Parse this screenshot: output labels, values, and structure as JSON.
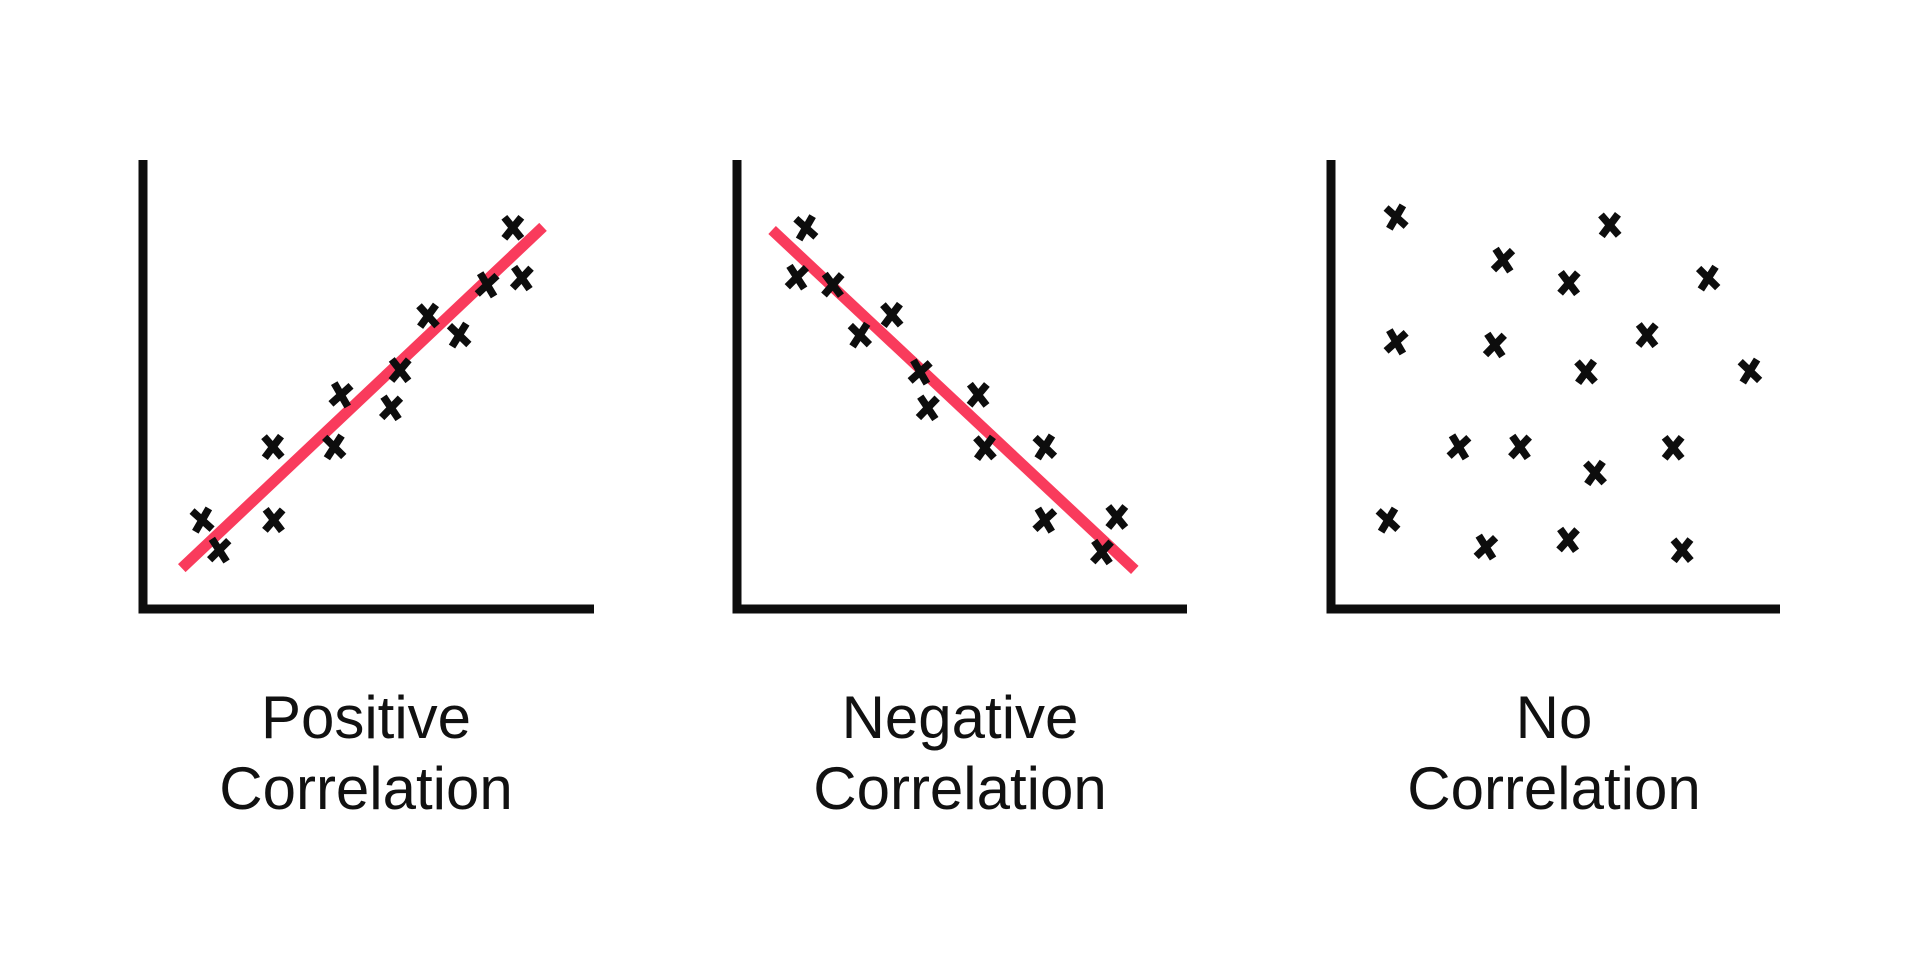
{
  "figure": {
    "background": "#ffffff",
    "text_color": "#111111"
  },
  "colors": {
    "axis": "#0d0d0d",
    "marker": "#0d0d0d",
    "trendline": "#f93b5c"
  },
  "chart_data": [
    {
      "type": "scatter",
      "title": "Positive Correlation",
      "title_lines": [
        "Positive",
        "Correlation"
      ],
      "xlabel": "",
      "ylabel": "",
      "marker": "x",
      "grid": false,
      "axis_ticks": false,
      "legend": false,
      "xlim": [
        0,
        100
      ],
      "ylim": [
        0,
        100
      ],
      "points": [
        [
          13.1,
          19.8
        ],
        [
          16.9,
          13.1
        ],
        [
          29.0,
          19.8
        ],
        [
          28.8,
          36.1
        ],
        [
          42.4,
          36.1
        ],
        [
          43.9,
          47.7
        ],
        [
          55.0,
          44.8
        ],
        [
          57.0,
          53.2
        ],
        [
          63.2,
          65.3
        ],
        [
          70.1,
          61.0
        ],
        [
          76.3,
          72.2
        ],
        [
          84.0,
          73.7
        ],
        [
          82.0,
          84.9
        ]
      ],
      "trendline": {
        "direction": "positive",
        "x1": 8.6,
        "y1": 9.1,
        "x2": 88.7,
        "y2": 85.1
      }
    },
    {
      "type": "scatter",
      "title": "Negative Correlation",
      "title_lines": [
        "Negative",
        "Correlation"
      ],
      "xlabel": "",
      "ylabel": "",
      "marker": "x",
      "grid": false,
      "axis_ticks": false,
      "legend": false,
      "xlim": [
        0,
        100
      ],
      "ylim": [
        0,
        100
      ],
      "points": [
        [
          15.3,
          84.9
        ],
        [
          13.3,
          73.9
        ],
        [
          21.3,
          72.2
        ],
        [
          34.4,
          65.5
        ],
        [
          27.3,
          61.0
        ],
        [
          40.7,
          52.8
        ],
        [
          42.4,
          44.8
        ],
        [
          53.6,
          47.7
        ],
        [
          55.1,
          35.9
        ],
        [
          68.4,
          36.1
        ],
        [
          68.4,
          19.8
        ],
        [
          81.1,
          12.7
        ],
        [
          84.4,
          20.5
        ]
      ],
      "trendline": {
        "direction": "negative",
        "x1": 7.8,
        "y1": 84.4,
        "x2": 88.4,
        "y2": 8.7
      }
    },
    {
      "type": "scatter",
      "title": "No Correlation",
      "title_lines": [
        "No",
        "Correlation"
      ],
      "xlabel": "",
      "ylabel": "",
      "marker": "x",
      "grid": false,
      "axis_ticks": false,
      "legend": false,
      "xlim": [
        0,
        100
      ],
      "ylim": [
        0,
        100
      ],
      "points": [
        [
          14.5,
          87.3
        ],
        [
          38.3,
          77.7
        ],
        [
          53.0,
          72.6
        ],
        [
          62.1,
          85.5
        ],
        [
          84.0,
          73.7
        ],
        [
          14.5,
          59.5
        ],
        [
          36.5,
          58.8
        ],
        [
          70.4,
          61.0
        ],
        [
          56.8,
          52.8
        ],
        [
          93.3,
          53.0
        ],
        [
          28.5,
          36.1
        ],
        [
          42.1,
          36.1
        ],
        [
          76.2,
          35.9
        ],
        [
          58.8,
          30.3
        ],
        [
          12.7,
          19.8
        ],
        [
          34.5,
          13.8
        ],
        [
          52.8,
          15.4
        ],
        [
          78.2,
          13.1
        ]
      ],
      "trendline": null
    }
  ]
}
